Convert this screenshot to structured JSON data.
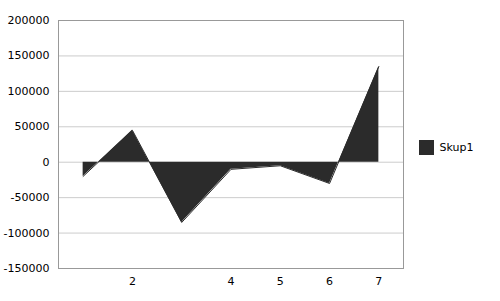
{
  "chart_data": {
    "type": "area",
    "x": [
      1,
      2,
      3,
      4,
      5,
      6,
      7
    ],
    "series": [
      {
        "name": "Skup1",
        "color": "#2b2b2b",
        "values": [
          -20000,
          45000,
          -85000,
          -10000,
          -5000,
          -30000,
          135000
        ]
      }
    ],
    "xlim": [
      0.5,
      7.5
    ],
    "xticks": [
      2,
      4,
      5,
      6,
      7
    ],
    "ylim": [
      -150000,
      200000
    ],
    "yticks": [
      -150000,
      -100000,
      -50000,
      0,
      50000,
      100000,
      150000,
      200000
    ],
    "grid": "y",
    "legend": "right"
  }
}
